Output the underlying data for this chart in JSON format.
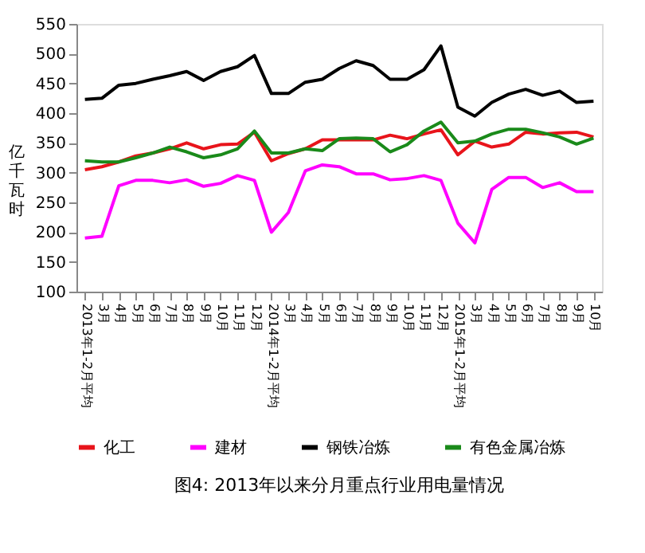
{
  "chart_data": {
    "type": "line",
    "title": "图4: 2013年以来分月重点行业用电量情况",
    "ylabel": "亿千瓦时",
    "categories": [
      "2013年1-2月平均",
      "3月",
      "4月",
      "5月",
      "6月",
      "7月",
      "8月",
      "9月",
      "10月",
      "11月",
      "12月",
      "2014年1-2月平均",
      "3月",
      "4月",
      "5月",
      "6月",
      "7月",
      "8月",
      "9月",
      "10月",
      "11月",
      "12月",
      "2015年1-2月平均",
      "3月",
      "4月",
      "5月",
      "6月",
      "7月",
      "8月",
      "9月",
      "10月"
    ],
    "series": [
      {
        "name": "化工",
        "color": "#e8141b",
        "values": [
          305,
          310,
          318,
          328,
          333,
          340,
          350,
          340,
          347,
          348,
          368,
          320,
          332,
          340,
          355,
          355,
          355,
          355,
          363,
          357,
          365,
          372,
          330,
          353,
          343,
          348,
          368,
          365,
          367,
          368,
          360
        ]
      },
      {
        "name": "建材",
        "color": "#ff00ff",
        "values": [
          190,
          193,
          278,
          287,
          287,
          283,
          288,
          277,
          282,
          295,
          287,
          200,
          233,
          303,
          313,
          310,
          298,
          298,
          288,
          290,
          295,
          287,
          215,
          182,
          272,
          292,
          292,
          275,
          283,
          268,
          268
        ]
      },
      {
        "name": "钢铁冶炼",
        "color": "#000000",
        "values": [
          423,
          425,
          447,
          450,
          457,
          463,
          470,
          455,
          470,
          478,
          497,
          433,
          433,
          452,
          457,
          475,
          488,
          480,
          457,
          457,
          473,
          513,
          410,
          395,
          418,
          432,
          440,
          430,
          437,
          418,
          420
        ]
      },
      {
        "name": "有色金属冶炼",
        "color": "#1a8a1a",
        "values": [
          320,
          318,
          318,
          325,
          333,
          343,
          335,
          325,
          330,
          340,
          370,
          333,
          333,
          340,
          337,
          357,
          358,
          357,
          335,
          347,
          370,
          385,
          350,
          353,
          365,
          373,
          373,
          367,
          360,
          348,
          358
        ]
      }
    ],
    "ylim": [
      100,
      550
    ],
    "yticks": [
      100,
      150,
      200,
      250,
      300,
      350,
      400,
      450,
      500,
      550
    ],
    "grid": false,
    "legend": "bottom",
    "marker": "none",
    "line_style": "solid"
  }
}
